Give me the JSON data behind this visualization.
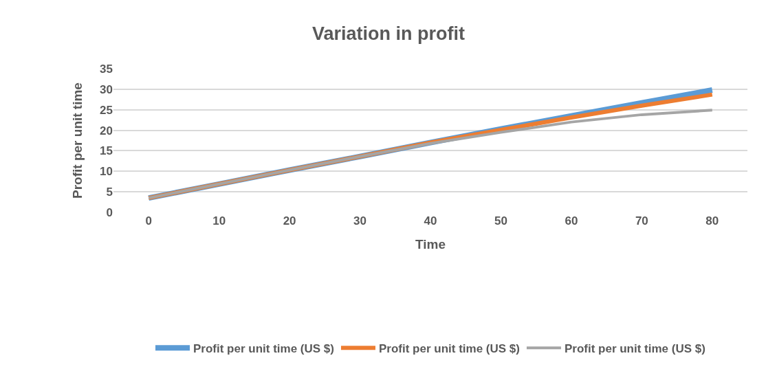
{
  "chart_data": {
    "type": "line",
    "title": "Variation in profit",
    "xlabel": "Time",
    "ylabel": "Profit per unit time",
    "categories": [
      "0",
      "10",
      "20",
      "30",
      "40",
      "50",
      "60",
      "70",
      "80"
    ],
    "series": [
      {
        "name": "Profit per unit time (US $)",
        "color": "#5b9bd5",
        "values": [
          3.5,
          6.9,
          10.3,
          13.6,
          17.0,
          20.3,
          23.5,
          26.7,
          29.8
        ]
      },
      {
        "name": "Profit per unit time (US $)",
        "color": "#ed7d31",
        "values": [
          3.5,
          6.9,
          10.3,
          13.6,
          17.0,
          20.1,
          23.1,
          26.0,
          28.7
        ]
      },
      {
        "name": "Profit per unit time (US $)",
        "color": "#a5a5a5",
        "values": [
          3.5,
          6.9,
          10.3,
          13.6,
          16.8,
          19.5,
          22.0,
          23.8,
          24.9
        ]
      }
    ],
    "ylim": [
      0,
      35
    ],
    "yticks": [
      0,
      5,
      10,
      15,
      20,
      25,
      30,
      35
    ],
    "grid": "y",
    "legend": "bottom",
    "marker": "none",
    "line_style": "solid"
  }
}
